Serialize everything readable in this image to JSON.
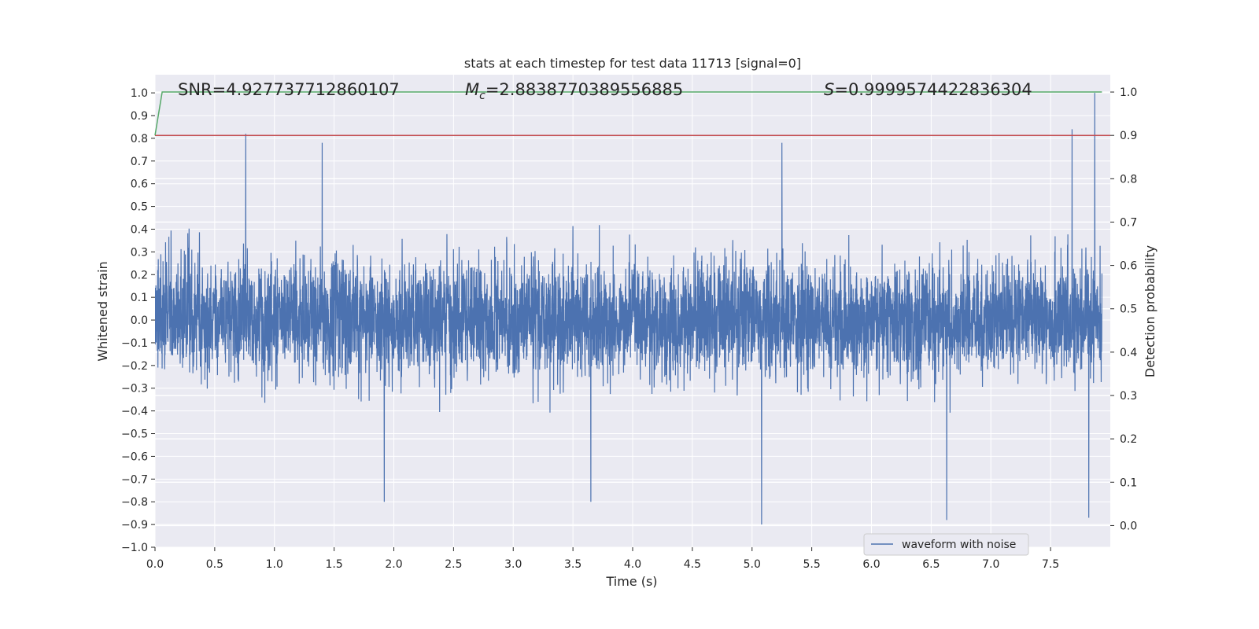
{
  "chart_data": {
    "type": "line",
    "title": "stats at each timestep for test data 11713 [signal=0]",
    "xlabel": "Time (s)",
    "ylabel": "Whitened strain",
    "ylabel_right": "Detection probability",
    "xlim": [
      0.0,
      8.0
    ],
    "ylim": [
      -1.0,
      1.08
    ],
    "ylim_right": [
      -0.05,
      1.04
    ],
    "x_ticks": [
      "0.0",
      "0.5",
      "1.0",
      "1.5",
      "2.0",
      "2.5",
      "3.0",
      "3.5",
      "4.0",
      "4.5",
      "5.0",
      "5.5",
      "6.0",
      "6.5",
      "7.0",
      "7.5"
    ],
    "y_ticks": [
      "1.0",
      "0.9",
      "0.8",
      "0.7",
      "0.6",
      "0.5",
      "0.4",
      "0.3",
      "0.2",
      "0.1",
      "0.0",
      "−0.1",
      "−0.2",
      "−0.3",
      "−0.4",
      "−0.5",
      "−0.6",
      "−0.7",
      "−0.8",
      "−0.9",
      "−1.0"
    ],
    "y_ticks_right": [
      "1.0",
      "0.9",
      "0.8",
      "0.7",
      "0.6",
      "0.5",
      "0.4",
      "0.3",
      "0.2",
      "0.1",
      "0.0"
    ],
    "annotations": {
      "snr": "SNR=4.927737712860107",
      "mc_symbol": "M",
      "mc_sub": "c",
      "mc_value": "=2.8838770389556885",
      "s_symbol": "S",
      "s_value": "=0.9999574422836304"
    },
    "legend": {
      "label": "waveform with noise",
      "placement": "lower-right"
    },
    "grid": true,
    "colors": {
      "waveform": "#4c72b0",
      "probability": "#55a868",
      "threshold": "#c44e52",
      "background": "#eaeaf2",
      "grid": "#ffffff"
    },
    "series": [
      {
        "name": "waveform with noise",
        "axis": "left",
        "duration_s": 7.93,
        "envelope_typical": [
          -0.4,
          0.42
        ],
        "notable_peaks": [
          {
            "x": 0.76,
            "y": 0.82
          },
          {
            "x": 1.4,
            "y": 0.78
          },
          {
            "x": 1.92,
            "y": -0.8
          },
          {
            "x": 3.65,
            "y": -0.8
          },
          {
            "x": 5.08,
            "y": -0.9
          },
          {
            "x": 5.25,
            "y": 0.78
          },
          {
            "x": 6.63,
            "y": -0.88
          },
          {
            "x": 7.68,
            "y": 0.84
          },
          {
            "x": 7.82,
            "y": -0.87
          },
          {
            "x": 7.87,
            "y": 1.0
          }
        ]
      },
      {
        "name": "detection probability",
        "axis": "right",
        "x": [
          0.0,
          0.06,
          7.93
        ],
        "y": [
          0.9,
          1.0,
          1.0
        ]
      },
      {
        "name": "threshold",
        "axis": "right",
        "x": [
          0.0,
          8.0
        ],
        "y": [
          0.9,
          0.9
        ]
      }
    ]
  }
}
